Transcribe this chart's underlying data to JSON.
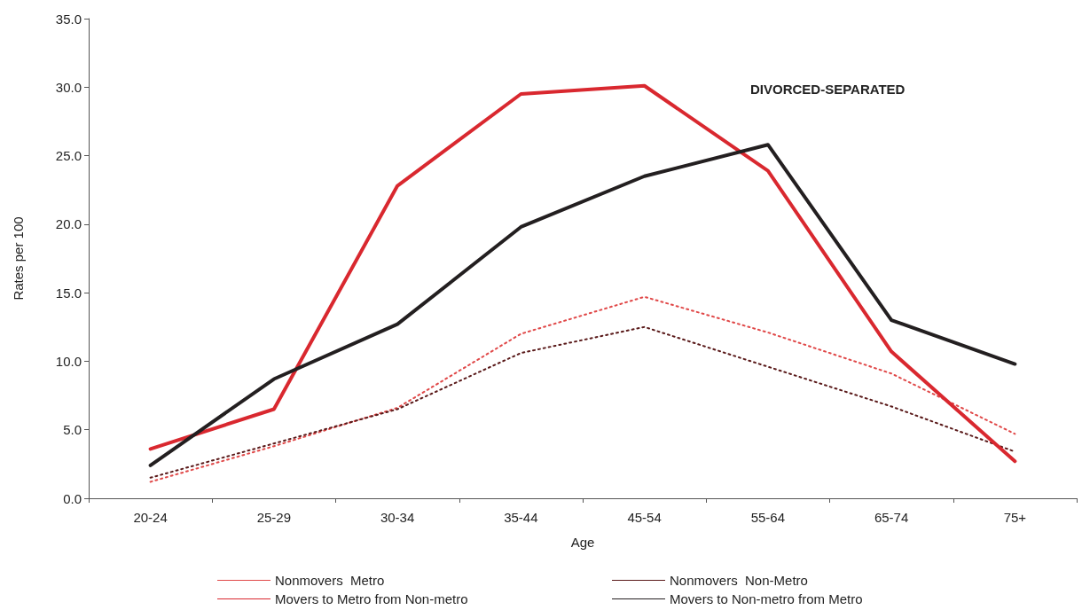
{
  "chart_data": {
    "type": "line",
    "xlabel": "Age",
    "ylabel": "Rates per 100",
    "annotations": [
      "DIVORCED-SEPARATED"
    ],
    "categories": [
      "20-24",
      "25-29",
      "30-34",
      "35-44",
      "45-54",
      "55-64",
      "65-74",
      "75+"
    ],
    "series": [
      {
        "name": "Nonmovers  Metro",
        "color": "#e04848",
        "line_style": "dotted",
        "values": [
          1.2,
          3.8,
          6.6,
          12.0,
          14.7,
          12.1,
          9.1,
          4.7
        ]
      },
      {
        "name": "Nonmovers  Non-Metro",
        "color": "#5a1a1a",
        "line_style": "dotted",
        "values": [
          1.5,
          4.0,
          6.5,
          10.6,
          12.5,
          9.6,
          6.7,
          3.4
        ]
      },
      {
        "name": "Movers to Metro from Non-metro",
        "color": "#d9282f",
        "line_style": "solid",
        "values": [
          3.6,
          6.5,
          22.8,
          29.5,
          30.1,
          23.9,
          10.7,
          2.7
        ]
      },
      {
        "name": "Movers to Non-metro from Metro",
        "color": "#231f20",
        "line_style": "solid",
        "values": [
          2.4,
          8.7,
          12.7,
          19.8,
          23.5,
          25.8,
          13.0,
          9.8
        ]
      }
    ],
    "ylim": [
      0,
      35
    ],
    "yticks": [
      {
        "value": 0,
        "label": "0.0"
      },
      {
        "value": 5,
        "label": "5.0"
      },
      {
        "value": 10,
        "label": "10.0"
      },
      {
        "value": 15,
        "label": "15.0"
      },
      {
        "value": 20,
        "label": "20.0"
      },
      {
        "value": 25,
        "label": "25.0"
      },
      {
        "value": 30,
        "label": "30.0"
      },
      {
        "value": 35,
        "label": "35.0"
      }
    ],
    "grid": false,
    "legend": "bottom",
    "marker": "none"
  }
}
